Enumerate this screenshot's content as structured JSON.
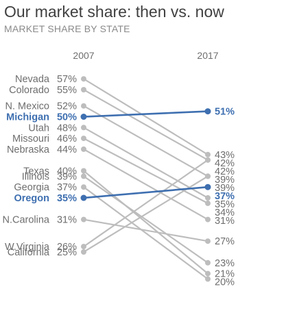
{
  "title": "Our market share: then vs. now",
  "subtitle": "MARKET SHARE BY STATE",
  "chart_data": {
    "type": "slope",
    "x": [
      "2007",
      "2017"
    ],
    "y_unit": "%",
    "highlight_color": "#3e6fb0",
    "base_color": "#bdbdbd",
    "text_color": "#6e6e6e",
    "series": [
      {
        "name": "Nevada",
        "values": [
          57,
          43
        ],
        "highlight": false
      },
      {
        "name": "Colorado",
        "values": [
          55,
          42
        ],
        "highlight": false
      },
      {
        "name": "N. Mexico",
        "values": [
          52,
          39
        ],
        "highlight": false
      },
      {
        "name": "Michigan",
        "values": [
          50,
          51
        ],
        "highlight": true
      },
      {
        "name": "Utah",
        "values": [
          48,
          35
        ],
        "highlight": false
      },
      {
        "name": "Missouri",
        "values": [
          46,
          34
        ],
        "highlight": false
      },
      {
        "name": "Nebraska",
        "values": [
          44,
          31
        ],
        "highlight": false
      },
      {
        "name": "Texas",
        "values": [
          40,
          21
        ],
        "highlight": false
      },
      {
        "name": "Illinois",
        "values": [
          39,
          23
        ],
        "highlight": false
      },
      {
        "name": "Georgia",
        "values": [
          37,
          20
        ],
        "highlight": false
      },
      {
        "name": "Oregon",
        "values": [
          35,
          37
        ],
        "highlight": true
      },
      {
        "name": "N.Carolina",
        "values": [
          31,
          27
        ],
        "highlight": false
      },
      {
        "name": "W.Virginia",
        "values": [
          26,
          42
        ],
        "highlight": false
      },
      {
        "name": "California",
        "values": [
          25,
          39
        ],
        "highlight": false
      }
    ]
  }
}
